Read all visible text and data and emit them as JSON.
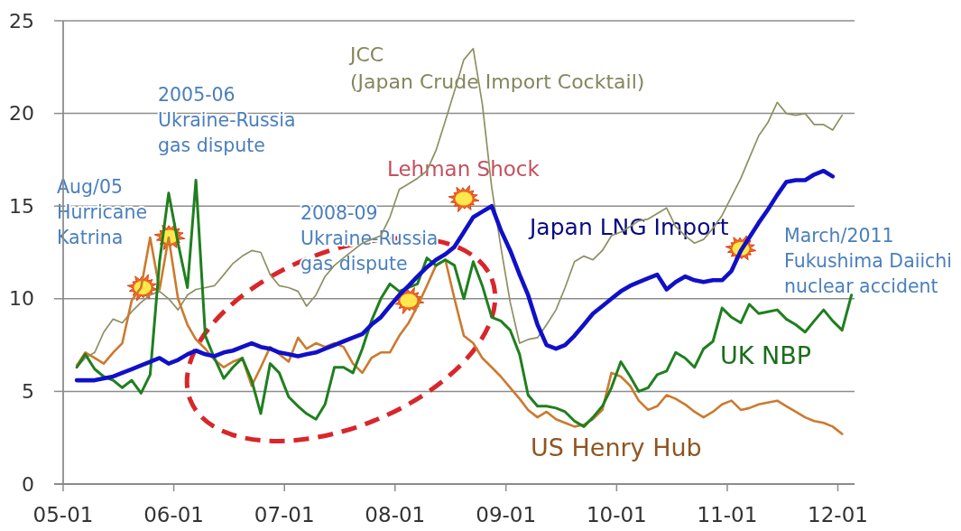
{
  "chart_data": {
    "type": "line",
    "x": [
      "2005-02-15",
      "2005-03-15",
      "2005-04-15",
      "2005-05-15",
      "2005-06-15",
      "2005-07-15",
      "2005-08-15",
      "2005-09-15",
      "2005-10-15",
      "2005-11-15",
      "2005-12-15",
      "2006-01-15",
      "2006-02-15",
      "2006-03-15",
      "2006-04-15",
      "2006-05-15",
      "2006-06-15",
      "2006-07-15",
      "2006-08-15",
      "2006-09-15",
      "2006-10-15",
      "2006-11-15",
      "2006-12-15",
      "2007-01-15",
      "2007-02-15",
      "2007-03-15",
      "2007-04-15",
      "2007-05-15",
      "2007-06-15",
      "2007-07-15",
      "2007-08-15",
      "2007-09-15",
      "2007-10-15",
      "2007-11-15",
      "2007-12-15",
      "2008-01-15",
      "2008-02-15",
      "2008-03-15",
      "2008-04-15",
      "2008-05-15",
      "2008-06-15",
      "2008-07-15",
      "2008-08-15",
      "2008-09-15",
      "2008-10-15",
      "2008-11-15",
      "2008-12-15",
      "2009-01-15",
      "2009-02-15",
      "2009-03-15",
      "2009-04-15",
      "2009-05-15",
      "2009-06-15",
      "2009-07-15",
      "2009-08-15",
      "2009-09-15",
      "2009-10-15",
      "2009-11-15",
      "2009-12-15",
      "2010-01-15",
      "2010-02-15",
      "2010-03-15",
      "2010-04-15",
      "2010-05-15",
      "2010-06-15",
      "2010-07-15",
      "2010-08-15",
      "2010-09-15",
      "2010-10-15",
      "2010-11-15",
      "2010-12-15",
      "2011-01-15",
      "2011-02-15",
      "2011-03-15",
      "2011-04-15",
      "2011-05-15",
      "2011-06-15",
      "2011-07-15",
      "2011-08-15",
      "2011-09-15",
      "2011-10-15",
      "2011-11-15",
      "2011-12-15",
      "2012-01-15",
      "2012-02-15"
    ],
    "series": [
      {
        "name": "JCC\n(Japan Crude Import Cocktail)",
        "color": "#8e9063",
        "values": [
          6.3,
          6.8,
          7.1,
          8.2,
          8.9,
          8.7,
          9.3,
          9.8,
          10.2,
          10.4,
          10.0,
          9.4,
          10.2,
          10.5,
          10.6,
          10.7,
          11.3,
          11.9,
          12.3,
          12.6,
          12.5,
          11.3,
          10.7,
          10.6,
          10.4,
          9.6,
          10.2,
          11.2,
          11.8,
          12.2,
          12.6,
          13.0,
          13.2,
          13.4,
          14.4,
          15.9,
          16.2,
          16.5,
          16.9,
          18.0,
          19.6,
          21.2,
          22.9,
          23.5,
          20.5,
          16.0,
          12.8,
          9.8,
          7.6,
          7.8,
          7.9,
          8.6,
          9.4,
          10.6,
          12.0,
          12.3,
          12.1,
          12.6,
          13.4,
          13.6,
          13.9,
          14.2,
          14.3,
          14.6,
          14.9,
          13.9,
          13.4,
          13.0,
          13.2,
          13.8,
          14.5,
          15.5,
          16.5,
          17.6,
          18.8,
          19.5,
          20.6,
          20.0,
          19.9,
          20.0,
          19.4,
          19.4,
          19.1,
          19.9,
          null
        ]
      },
      {
        "name": "US Henry Hub",
        "color": "#cc7a2e",
        "values": [
          6.4,
          7.1,
          6.8,
          6.5,
          7.1,
          7.6,
          9.9,
          10.6,
          13.3,
          10.5,
          13.3,
          10.0,
          8.6,
          7.8,
          7.3,
          6.7,
          6.3,
          6.6,
          6.8,
          5.3,
          6.3,
          7.4,
          7.0,
          6.6,
          7.9,
          7.3,
          7.6,
          7.4,
          7.6,
          7.4,
          6.5,
          6.0,
          6.8,
          7.1,
          7.1,
          8.0,
          8.7,
          9.6,
          10.7,
          11.8,
          12.1,
          10.0,
          8.0,
          7.6,
          6.8,
          6.3,
          5.8,
          5.2,
          4.6,
          4.0,
          3.6,
          3.9,
          3.5,
          3.3,
          3.1,
          3.2,
          3.5,
          4.0,
          6.0,
          5.8,
          5.3,
          4.5,
          4.0,
          4.2,
          4.8,
          4.6,
          4.3,
          3.9,
          3.6,
          3.9,
          4.3,
          4.5,
          4.0,
          4.1,
          4.3,
          4.4,
          4.5,
          4.2,
          3.9,
          3.6,
          3.4,
          3.3,
          3.1,
          2.7,
          null
        ]
      },
      {
        "name": "UK NBP",
        "color": "#1f7f1f",
        "values": [
          6.3,
          7.0,
          6.2,
          5.8,
          5.6,
          5.2,
          5.6,
          4.9,
          5.9,
          12.0,
          15.7,
          13.0,
          10.6,
          16.4,
          8.0,
          6.8,
          5.7,
          6.3,
          6.8,
          5.6,
          3.8,
          6.5,
          6.0,
          4.7,
          4.2,
          3.8,
          3.5,
          4.3,
          6.3,
          6.3,
          6.0,
          7.3,
          8.8,
          10.0,
          10.8,
          10.4,
          10.6,
          10.8,
          12.2,
          11.8,
          12.1,
          11.8,
          10.0,
          12.0,
          10.7,
          9.0,
          8.8,
          8.3,
          7.0,
          4.8,
          4.2,
          4.2,
          4.1,
          3.9,
          3.4,
          3.1,
          3.6,
          4.2,
          5.2,
          6.6,
          5.8,
          5.0,
          5.2,
          5.9,
          6.1,
          7.1,
          6.8,
          6.3,
          7.3,
          7.7,
          9.5,
          9.0,
          8.7,
          9.7,
          9.2,
          9.3,
          9.4,
          8.9,
          8.6,
          8.2,
          8.8,
          9.4,
          8.8,
          8.3,
          10.2
        ]
      },
      {
        "name": "Japan LNG Import",
        "color": "#1010c8",
        "values": [
          5.6,
          5.6,
          5.6,
          5.7,
          5.8,
          6.0,
          6.2,
          6.4,
          6.6,
          6.8,
          6.5,
          6.7,
          7.0,
          7.2,
          7.0,
          6.9,
          7.1,
          7.2,
          7.4,
          7.6,
          7.4,
          7.3,
          7.1,
          7.0,
          6.9,
          7.0,
          7.1,
          7.3,
          7.5,
          7.7,
          7.9,
          8.1,
          8.6,
          9.0,
          9.6,
          10.2,
          10.7,
          11.2,
          11.7,
          12.1,
          12.4,
          12.8,
          13.6,
          14.4,
          14.7,
          15.0,
          13.7,
          12.6,
          11.3,
          10.2,
          8.6,
          7.5,
          7.3,
          7.5,
          8.0,
          8.6,
          9.2,
          9.6,
          10.0,
          10.4,
          10.7,
          10.9,
          11.1,
          11.3,
          10.5,
          10.9,
          11.2,
          11.0,
          10.9,
          11.0,
          11.0,
          11.5,
          12.6,
          13.3,
          14.1,
          14.8,
          15.6,
          16.3,
          16.4,
          16.4,
          16.7,
          16.9,
          16.6,
          null,
          null
        ]
      }
    ],
    "xlim": [
      "2005-01-01",
      "2012-02-25"
    ],
    "ylim": [
      0,
      25
    ],
    "xticks": [
      {
        "value": "2005-01",
        "label": "05-01"
      },
      {
        "value": "2006-01",
        "label": "06-01"
      },
      {
        "value": "2007-01",
        "label": "07-01"
      },
      {
        "value": "2008-01",
        "label": "08-01"
      },
      {
        "value": "2009-01",
        "label": "09-01"
      },
      {
        "value": "2010-01",
        "label": "10-01"
      },
      {
        "value": "2011-01",
        "label": "11-01"
      },
      {
        "value": "2012-01",
        "label": "12-01"
      }
    ],
    "yticks": [
      0,
      5,
      10,
      15,
      20,
      25
    ],
    "grid": "y",
    "annotations": [
      {
        "text": "Aug/05\nHurricane\nKatrina",
        "x": "2005-09-20",
        "y": 10.6
      },
      "2005-06\nUkraine-Russia\ngas dispute",
      {
        "text": "2008-09\nUkraine-Russia\ngas dispute",
        "x": "2008-02-15",
        "y": 9.9
      },
      {
        "text": "Lehman Shock",
        "x": "2008-08-15",
        "y": 15.4
      },
      {
        "text": "March/2011\nFukushima Daiichi\nnuclear accident",
        "x": "2011-02-15",
        "y": 12.7
      }
    ]
  }
}
